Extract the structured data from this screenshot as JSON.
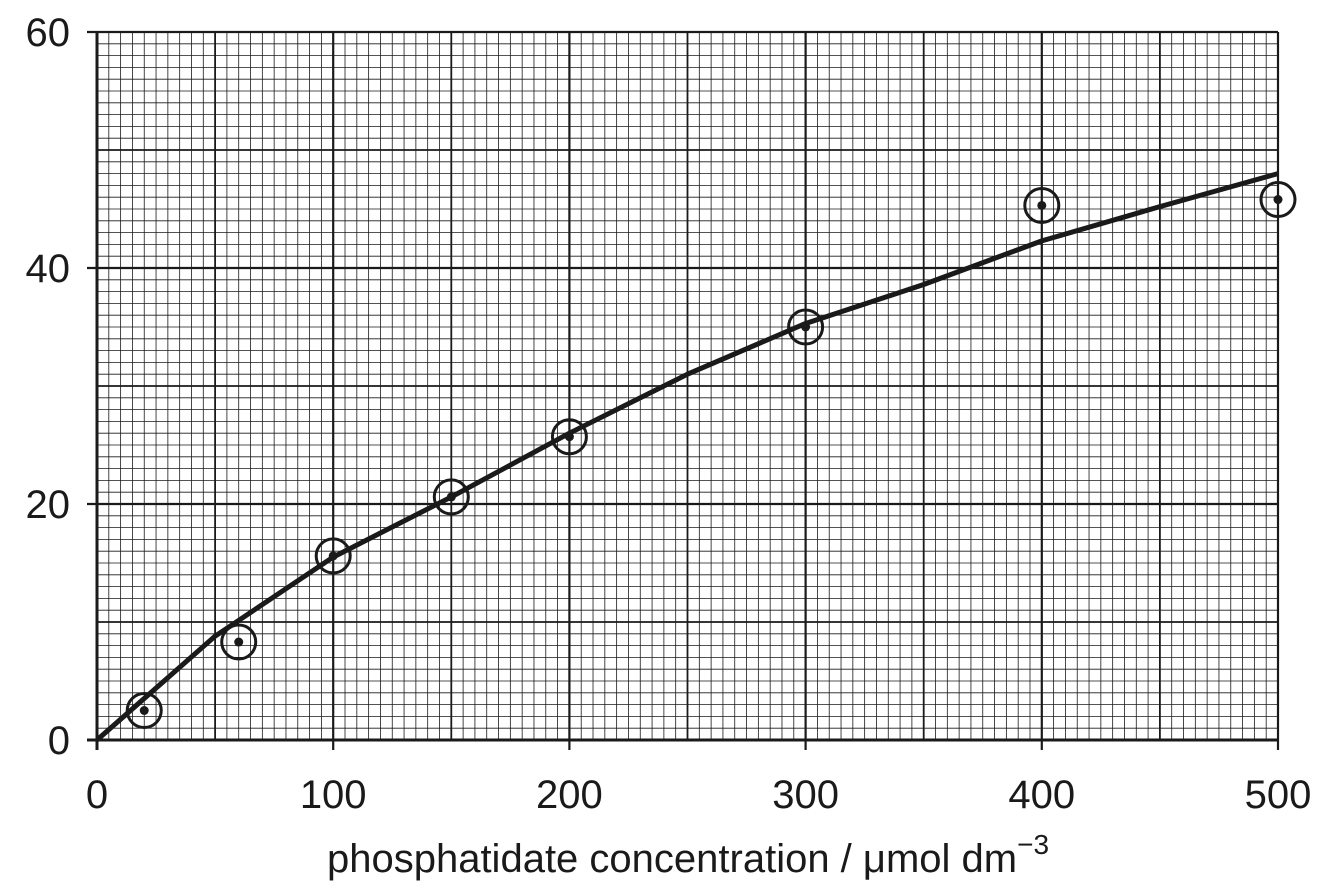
{
  "chart_data": {
    "type": "scatter",
    "x_label": "phosphatidate concentration / μmol dm",
    "x_label_sup": "−3",
    "xlim": [
      0,
      500
    ],
    "ylim": [
      0,
      60
    ],
    "xticks": [
      0,
      100,
      200,
      300,
      400,
      500
    ],
    "yticks": [
      0,
      20,
      40,
      60
    ],
    "grid": true,
    "minor_grid": {
      "x": 5,
      "y": 1
    },
    "major_grid": {
      "x": 50,
      "y": 10
    },
    "color": "#1a1a1a",
    "series": [
      {
        "x": [
          20,
          60,
          100,
          150,
          200,
          300,
          400,
          500
        ],
        "values": [
          2.5,
          8.3,
          15.6,
          20.6,
          25.7,
          35.0,
          45.3,
          45.8
        ]
      }
    ],
    "fit": {
      "x": [
        0,
        50,
        100,
        150,
        200,
        250,
        300,
        350,
        400,
        450,
        500
      ],
      "values": [
        0,
        8.8,
        15.5,
        20.6,
        26.0,
        31.0,
        35.3,
        38.6,
        42.3,
        45.2,
        48.0
      ]
    }
  }
}
